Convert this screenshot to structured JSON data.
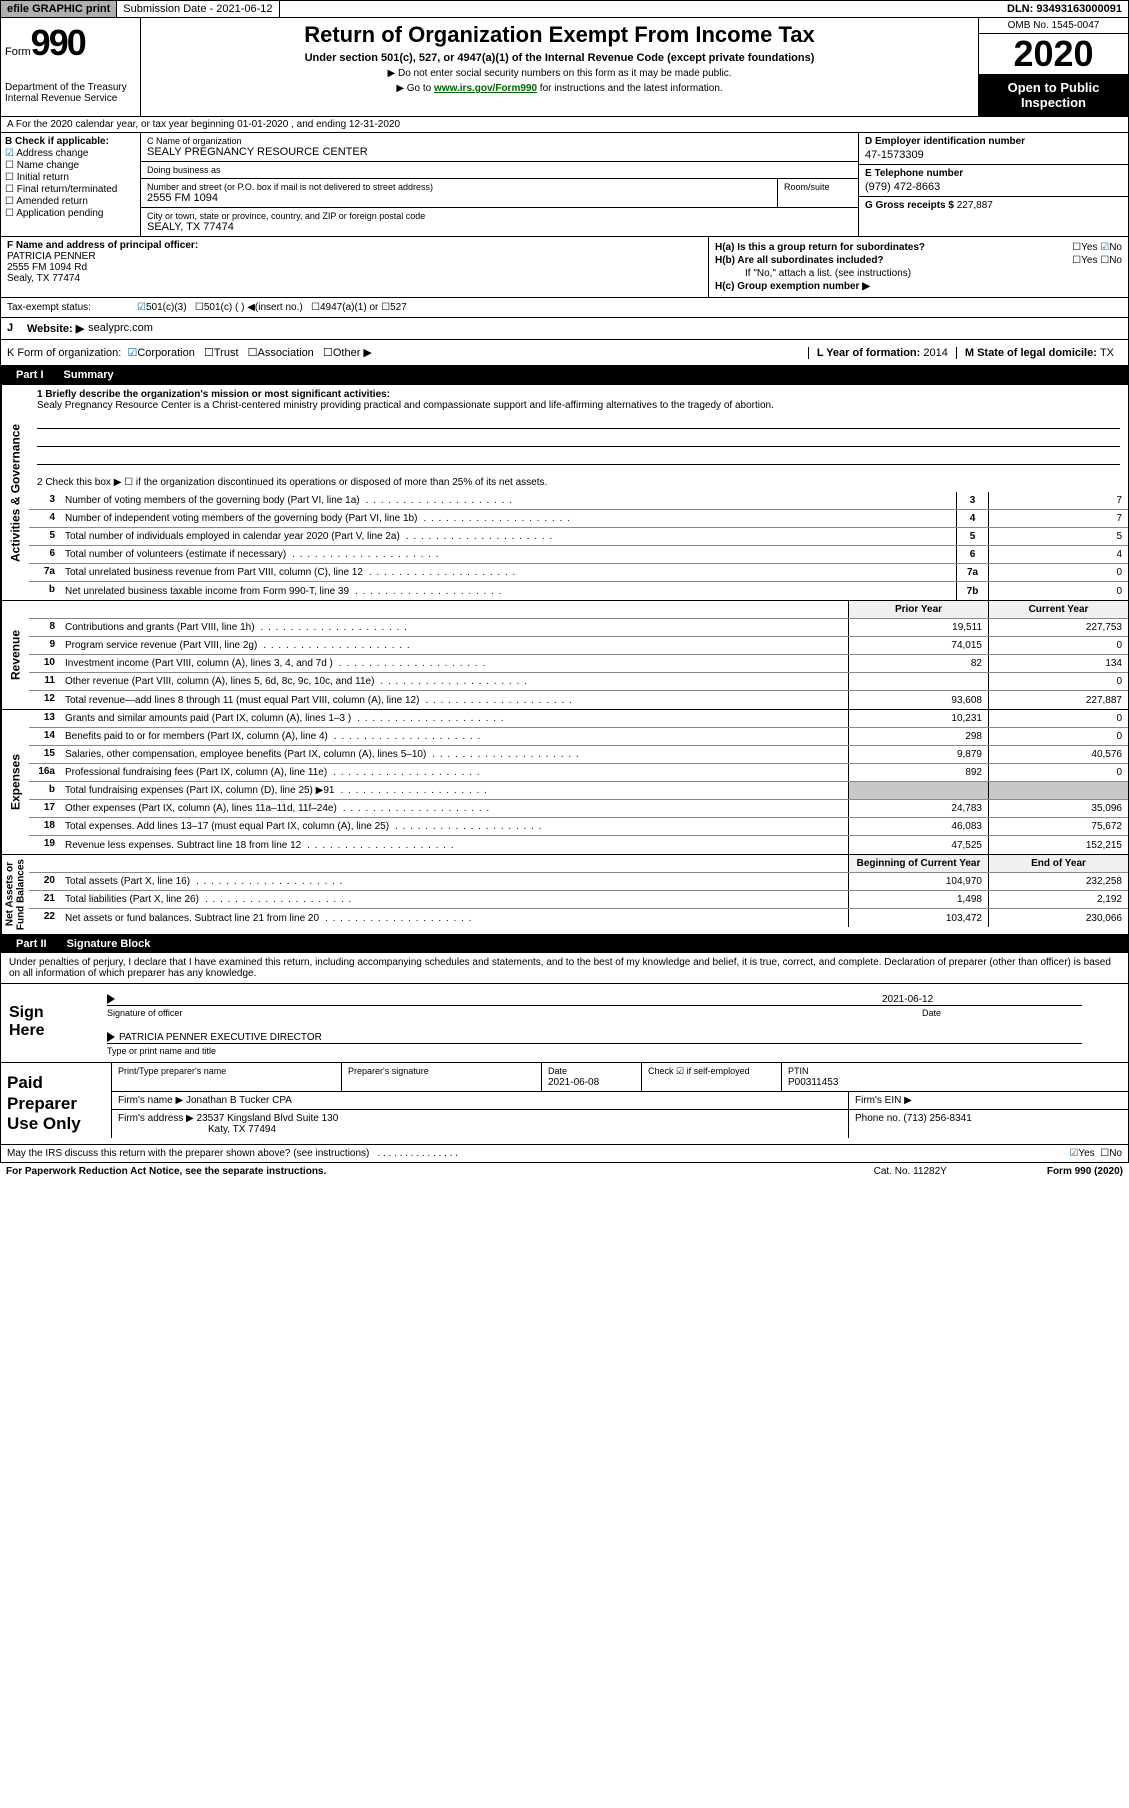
{
  "colors": {
    "black": "#000000",
    "white": "#ffffff",
    "link_green": "#006600",
    "link_blue": "#0000cc",
    "check_blue": "#0066aa",
    "shaded": "#c8c8c8",
    "header_gray": "#b0b0b0"
  },
  "topbar": {
    "efile": "efile GRAPHIC print",
    "submission_label": "Submission Date - ",
    "submission_date": "2021-06-12",
    "dln_label": "DLN: ",
    "dln": "93493163000091"
  },
  "header": {
    "form_word": "Form",
    "form_number": "990",
    "dept": "Department of the Treasury\nInternal Revenue Service",
    "title": "Return of Organization Exempt From Income Tax",
    "subtitle": "Under section 501(c), 527, or 4947(a)(1) of the Internal Revenue Code (except private foundations)",
    "note1": "▶ Do not enter social security numbers on this form as it may be made public.",
    "note2_pre": "▶ Go to ",
    "note2_link": "www.irs.gov/Form990",
    "note2_post": " for instructions and the latest information.",
    "omb": "OMB No. 1545-0047",
    "year": "2020",
    "open_pub": "Open to Public Inspection"
  },
  "row_a": "A For the 2020 calendar year, or tax year beginning 01-01-2020    , and ending 12-31-2020",
  "col_b": {
    "header": "B Check if applicable:",
    "items": [
      {
        "label": "Address change",
        "checked": true
      },
      {
        "label": "Name change",
        "checked": false
      },
      {
        "label": "Initial return",
        "checked": false
      },
      {
        "label": "Final return/terminated",
        "checked": false
      },
      {
        "label": "Amended return",
        "checked": false
      },
      {
        "label": "Application pending",
        "checked": false
      }
    ]
  },
  "col_c": {
    "name_lbl": "C Name of organization",
    "name": "SEALY PREGNANCY RESOURCE CENTER",
    "dba_lbl": "Doing business as",
    "dba": "",
    "street_lbl": "Number and street (or P.O. box if mail is not delivered to street address)",
    "street": "2555 FM 1094",
    "suite_lbl": "Room/suite",
    "suite": "",
    "city_lbl": "City or town, state or province, country, and ZIP or foreign postal code",
    "city": "SEALY, TX  77474"
  },
  "col_d": {
    "ein_lbl": "D Employer identification number",
    "ein": "47-1573309",
    "phone_lbl": "E Telephone number",
    "phone": "(979) 472-8663",
    "gross_lbl": "G Gross receipts $ ",
    "gross": "227,887"
  },
  "f": {
    "lbl": "F  Name and address of principal officer:",
    "name": "PATRICIA PENNER",
    "addr1": "2555 FM 1094 Rd",
    "addr2": "Sealy, TX  77474"
  },
  "h": {
    "a_lbl": "H(a)  Is this a group return for subordinates?",
    "a_yes": "Yes",
    "a_no_checked": "No",
    "b_lbl": "H(b)  Are all subordinates included?",
    "b_yes": "Yes",
    "b_no": "No",
    "b_note": "If \"No,\" attach a list. (see instructions)",
    "c_lbl": "H(c)  Group exemption number ▶"
  },
  "tax_exempt": {
    "lbl": "Tax-exempt status:",
    "c501c3": "501(c)(3)",
    "c501c": "501(c) (  ) ◀(insert no.)",
    "c4947": "4947(a)(1) or",
    "c527": "527"
  },
  "website": {
    "j": "J",
    "lbl": "Website: ▶",
    "val": "sealyprc.com"
  },
  "k": {
    "lbl": "K Form of organization:",
    "corp": "Corporation",
    "trust": "Trust",
    "assoc": "Association",
    "other": "Other ▶",
    "l_lbl": "L Year of formation: ",
    "l_val": "2014",
    "m_lbl": "M State of legal domicile: ",
    "m_val": "TX"
  },
  "part1": {
    "num": "Part I",
    "title": "Summary"
  },
  "summary": {
    "q1_lbl": "1  Briefly describe the organization's mission or most significant activities:",
    "q1_val": "Sealy Pregnancy Resource Center is a Christ-centered ministry providing practical and compassionate support and life-affirming alternatives to the tragedy of abortion.",
    "q2": "2   Check this box ▶ ☐  if the organization discontinued its operations or disposed of more than 25% of its net assets."
  },
  "activities_rows": [
    {
      "n": "3",
      "d": "Number of voting members of the governing body (Part VI, line 1a)",
      "box": "3",
      "v": "7"
    },
    {
      "n": "4",
      "d": "Number of independent voting members of the governing body (Part VI, line 1b)",
      "box": "4",
      "v": "7"
    },
    {
      "n": "5",
      "d": "Total number of individuals employed in calendar year 2020 (Part V, line 2a)",
      "box": "5",
      "v": "5"
    },
    {
      "n": "6",
      "d": "Total number of volunteers (estimate if necessary)",
      "box": "6",
      "v": "4"
    },
    {
      "n": "7a",
      "d": "Total unrelated business revenue from Part VIII, column (C), line 12",
      "box": "7a",
      "v": "0"
    },
    {
      "n": "b",
      "d": "Net unrelated business taxable income from Form 990-T, line 39",
      "box": "7b",
      "v": "0"
    }
  ],
  "two_col_header": {
    "py": "Prior Year",
    "cy": "Current Year"
  },
  "revenue_rows": [
    {
      "n": "8",
      "d": "Contributions and grants (Part VIII, line 1h)",
      "py": "19,511",
      "cy": "227,753"
    },
    {
      "n": "9",
      "d": "Program service revenue (Part VIII, line 2g)",
      "py": "74,015",
      "cy": "0"
    },
    {
      "n": "10",
      "d": "Investment income (Part VIII, column (A), lines 3, 4, and 7d )",
      "py": "82",
      "cy": "134"
    },
    {
      "n": "11",
      "d": "Other revenue (Part VIII, column (A), lines 5, 6d, 8c, 9c, 10c, and 11e)",
      "py": "",
      "cy": "0"
    },
    {
      "n": "12",
      "d": "Total revenue—add lines 8 through 11 (must equal Part VIII, column (A), line 12)",
      "py": "93,608",
      "cy": "227,887"
    }
  ],
  "expense_rows": [
    {
      "n": "13",
      "d": "Grants and similar amounts paid (Part IX, column (A), lines 1–3 )",
      "py": "10,231",
      "cy": "0"
    },
    {
      "n": "14",
      "d": "Benefits paid to or for members (Part IX, column (A), line 4)",
      "py": "298",
      "cy": "0"
    },
    {
      "n": "15",
      "d": "Salaries, other compensation, employee benefits (Part IX, column (A), lines 5–10)",
      "py": "9,879",
      "cy": "40,576"
    },
    {
      "n": "16a",
      "d": "Professional fundraising fees (Part IX, column (A), line 11e)",
      "py": "892",
      "cy": "0"
    },
    {
      "n": "b",
      "d": "Total fundraising expenses (Part IX, column (D), line 25) ▶91",
      "py": "SHADED",
      "cy": "SHADED"
    },
    {
      "n": "17",
      "d": "Other expenses (Part IX, column (A), lines 11a–11d, 11f–24e)",
      "py": "24,783",
      "cy": "35,096"
    },
    {
      "n": "18",
      "d": "Total expenses. Add lines 13–17 (must equal Part IX, column (A), line 25)",
      "py": "46,083",
      "cy": "75,672"
    },
    {
      "n": "19",
      "d": "Revenue less expenses. Subtract line 18 from line 12",
      "py": "47,525",
      "cy": "152,215"
    }
  ],
  "net_header": {
    "py": "Beginning of Current Year",
    "cy": "End of Year"
  },
  "net_rows": [
    {
      "n": "20",
      "d": "Total assets (Part X, line 16)",
      "py": "104,970",
      "cy": "232,258"
    },
    {
      "n": "21",
      "d": "Total liabilities (Part X, line 26)",
      "py": "1,498",
      "cy": "2,192"
    },
    {
      "n": "22",
      "d": "Net assets or fund balances. Subtract line 21 from line 20",
      "py": "103,472",
      "cy": "230,066"
    }
  ],
  "side_labels": {
    "act": "Activities & Governance",
    "rev": "Revenue",
    "exp": "Expenses",
    "net": "Net Assets or\nFund Balances"
  },
  "part2": {
    "num": "Part II",
    "title": "Signature Block"
  },
  "sig": {
    "decl": "Under penalties of perjury, I declare that I have examined this return, including accompanying schedules and statements, and to the best of my knowledge and belief, it is true, correct, and complete. Declaration of preparer (other than officer) is based on all information of which preparer has any knowledge.",
    "sign_here": "Sign Here",
    "sig_officer_lbl": "Signature of officer",
    "date_lbl": "Date",
    "date_val": "2021-06-12",
    "name_title": "PATRICIA PENNER  EXECUTIVE DIRECTOR",
    "name_title_lbl": "Type or print name and title"
  },
  "paid": {
    "lbl": "Paid Preparer Use Only",
    "print_lbl": "Print/Type preparer's name",
    "sig_lbl": "Preparer's signature",
    "date_lbl": "Date",
    "date_val": "2021-06-08",
    "check_lbl": "Check ☑ if self-employed",
    "ptin_lbl": "PTIN",
    "ptin_val": "P00311453",
    "firm_name_lbl": "Firm's name    ▶",
    "firm_name": "Jonathan B Tucker CPA",
    "firm_ein_lbl": "Firm's EIN ▶",
    "firm_addr_lbl": "Firm's address ▶",
    "firm_addr1": "23537 Kingsland Blvd Suite 130",
    "firm_addr2": "Katy, TX  77494",
    "phone_lbl": "Phone no. ",
    "phone": "(713) 256-8341"
  },
  "footer": {
    "discuss": "May the IRS discuss this return with the preparer shown above? (see instructions)",
    "yes": "Yes",
    "no": "No",
    "paperwork": "For Paperwork Reduction Act Notice, see the separate instructions.",
    "cat": "Cat. No. 11282Y",
    "form": "Form 990 (2020)"
  }
}
